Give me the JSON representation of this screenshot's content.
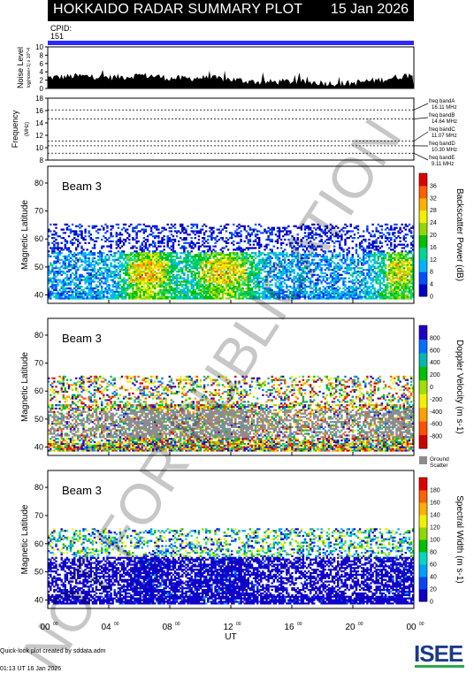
{
  "header": {
    "title": "HOKKAIDO RADAR SUMMARY PLOT",
    "date": "15 Jan 2026",
    "cpid_label": "CPID:",
    "cpid_value": "151"
  },
  "colors": {
    "cpid_bar": "#2a2aff",
    "title_bg": "#000000",
    "ground_scatter": "#8c8c8c",
    "watermark": "#000000"
  },
  "watermark": "NOT FOR PUBLICATION",
  "footer": {
    "credit": "Quick-look plot created by sddata.adm",
    "timestamp": "01:13 UT 16 Jan 2026",
    "logo": "ISEE"
  },
  "chart_data": [
    {
      "type": "area",
      "name": "noise",
      "ylabel": "Noise Level",
      "ylabel_sub": "log(noise+1) x 10^-4",
      "ylim": [
        0,
        10
      ],
      "yticks": [
        0,
        2,
        4,
        6,
        8,
        10
      ],
      "x_hours": [
        0,
        1,
        2,
        3,
        4,
        5,
        6,
        7,
        8,
        9,
        10,
        11,
        12,
        13,
        14,
        15,
        16,
        17,
        18,
        19,
        20,
        21,
        22,
        23,
        24
      ],
      "values": [
        2.6,
        2.8,
        3.0,
        2.9,
        2.7,
        2.8,
        3.2,
        3.0,
        2.5,
        2.4,
        2.6,
        2.4,
        2.2,
        1.8,
        1.5,
        1.6,
        1.7,
        1.5,
        1.4,
        1.2,
        1.3,
        1.8,
        2.2,
        2.8,
        3.4
      ]
    },
    {
      "type": "line",
      "name": "frequency",
      "ylabel": "Frequency",
      "ylabel_sub": "(MHz)",
      "ylim": [
        8,
        18
      ],
      "yticks": [
        8,
        10,
        12,
        14,
        16,
        18
      ],
      "bands": [
        {
          "label": "freq bandA",
          "value": "16.11 MHz",
          "mhz": 16.11
        },
        {
          "label": "freq bandB",
          "value": "14.64 MHz",
          "mhz": 14.64
        },
        {
          "label": "freq bandC",
          "value": "11.07 MHz",
          "mhz": 11.07
        },
        {
          "label": "freq bandD",
          "value": "10.30 MHz",
          "mhz": 10.3
        },
        {
          "label": "freq bandE",
          "value": "9.11 MHz",
          "mhz": 9.11
        }
      ]
    },
    {
      "type": "heatmap",
      "name": "power",
      "beam_label": "Beam 3",
      "ylabel": "Magnetic Latitude",
      "ylim": [
        37,
        86
      ],
      "yticks": [
        40,
        50,
        60,
        70,
        80
      ],
      "colorbar_label": "Backscatter Power (dB)",
      "colorbar_ticks": [
        0,
        4,
        8,
        12,
        16,
        20,
        24,
        28,
        32,
        36
      ],
      "colorbar_range": [
        0,
        40
      ],
      "colormap": [
        "#0000c8",
        "#0050ff",
        "#00b4ff",
        "#00d890",
        "#00c000",
        "#90d800",
        "#f0f000",
        "#ffb000",
        "#ff6000",
        "#e00000"
      ]
    },
    {
      "type": "heatmap",
      "name": "velocity",
      "beam_label": "Beam 3",
      "ylabel": "Magnetic Latitude",
      "ylim": [
        37,
        86
      ],
      "yticks": [
        40,
        50,
        60,
        70,
        80
      ],
      "colorbar_label": "Doppler Velocity (m s-1)",
      "colorbar_ticks": [
        -800,
        -600,
        -400,
        -200,
        0,
        200,
        400,
        600,
        800
      ],
      "colorbar_range": [
        -1000,
        1000
      ],
      "colormap": [
        "#d00000",
        "#ff5000",
        "#ffa000",
        "#f0f000",
        "#a0e000",
        "#00c000",
        "#00b8b0",
        "#0070ff",
        "#2000c8"
      ],
      "ground_scatter_label": "Ground Scatter"
    },
    {
      "type": "heatmap",
      "name": "width",
      "beam_label": "Beam 3",
      "ylabel": "Magnetic Latitude",
      "ylim": [
        37,
        86
      ],
      "yticks": [
        40,
        50,
        60,
        70,
        80
      ],
      "colorbar_label": "Spectral Width (m s-1)",
      "colorbar_ticks": [
        0,
        20,
        40,
        60,
        80,
        100,
        120,
        140,
        160,
        180
      ],
      "colorbar_range": [
        0,
        200
      ],
      "colormap": [
        "#1000c8",
        "#0048ff",
        "#00a0ff",
        "#00d8c0",
        "#00c000",
        "#90d800",
        "#f0f000",
        "#ffb000",
        "#ff6000",
        "#e00000"
      ]
    }
  ],
  "x_axis": {
    "xlabel": "UT",
    "ticks": [
      "00",
      "04",
      "08",
      "12",
      "16",
      "20",
      "00"
    ],
    "tick_sup": "00",
    "range_hours": [
      0,
      24
    ]
  }
}
